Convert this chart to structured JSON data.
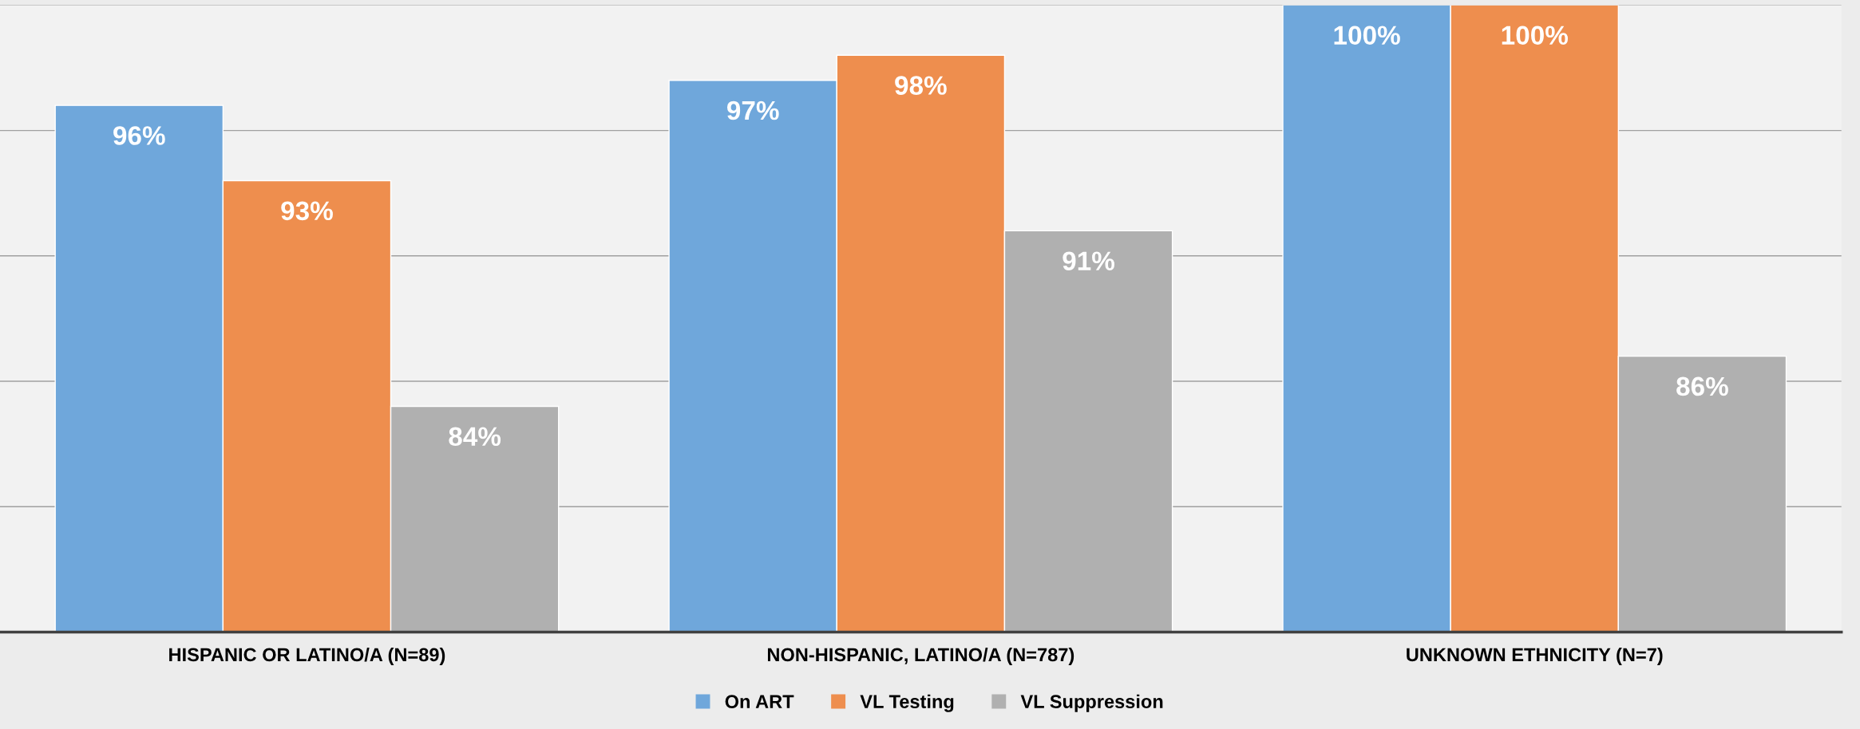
{
  "chart_data": {
    "type": "bar",
    "categories": [
      "HISPANIC OR LATINO/A (N=89)",
      "NON-HISPANIC, LATINO/A (N=787)",
      "UNKNOWN ETHNICITY (N=7)"
    ],
    "series": [
      {
        "name": "On ART",
        "color": "#6fa7db",
        "values": [
          96,
          97,
          100
        ],
        "value_labels": [
          "96%",
          "97%",
          "100%"
        ]
      },
      {
        "name": "VL Testing",
        "color": "#ee8e4e",
        "values": [
          93,
          98,
          100
        ],
        "value_labels": [
          "93%",
          "98%",
          "100%"
        ]
      },
      {
        "name": "VL Suppression",
        "color": "#b0b0b0",
        "values": [
          84,
          91,
          86
        ],
        "value_labels": [
          "84%",
          "91%",
          "86%"
        ]
      }
    ],
    "ylim": [
      75,
      100
    ],
    "yticks": [
      75,
      80,
      85,
      90,
      95,
      100
    ],
    "tick_labels": "x",
    "grid": "y",
    "legend": "bottom"
  }
}
